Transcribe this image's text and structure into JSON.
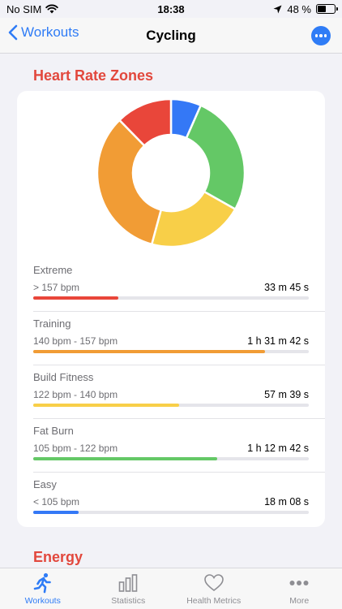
{
  "status": {
    "carrier": "No SIM",
    "time": "18:38",
    "battery_text": "48 %",
    "battery_level": 0.48
  },
  "nav": {
    "back_label": "Workouts",
    "title": "Cycling"
  },
  "heart_rate": {
    "title": "Heart Rate Zones",
    "zones": [
      {
        "name": "Extreme",
        "range": "> 157 bpm",
        "time": "33 m 45 s",
        "minutes": 33.75,
        "color": "#e9463a"
      },
      {
        "name": "Training",
        "range": "140 bpm - 157 bpm",
        "time": "1 h 31 m 42 s",
        "minutes": 91.7,
        "color": "#f19c35"
      },
      {
        "name": "Build Fitness",
        "range": "122 bpm - 140 bpm",
        "time": "57 m 39 s",
        "minutes": 57.65,
        "color": "#f8cf48"
      },
      {
        "name": "Fat Burn",
        "range": "105 bpm - 122 bpm",
        "time": "1 h 12 m 42 s",
        "minutes": 72.7,
        "color": "#64c866"
      },
      {
        "name": "Easy",
        "range": "< 105 bpm",
        "time": "18 m 08 s",
        "minutes": 18.13,
        "color": "#3478f6"
      }
    ]
  },
  "energy": {
    "title": "Energy"
  },
  "tabs": [
    {
      "label": "Workouts",
      "icon": "running-icon",
      "active": true
    },
    {
      "label": "Statistics",
      "icon": "bar-chart-icon",
      "active": false
    },
    {
      "label": "Health Metrics",
      "icon": "heart-icon",
      "active": false
    },
    {
      "label": "More",
      "icon": "more-dots-icon",
      "active": false
    }
  ],
  "accent_color": "#2f7cf6"
}
